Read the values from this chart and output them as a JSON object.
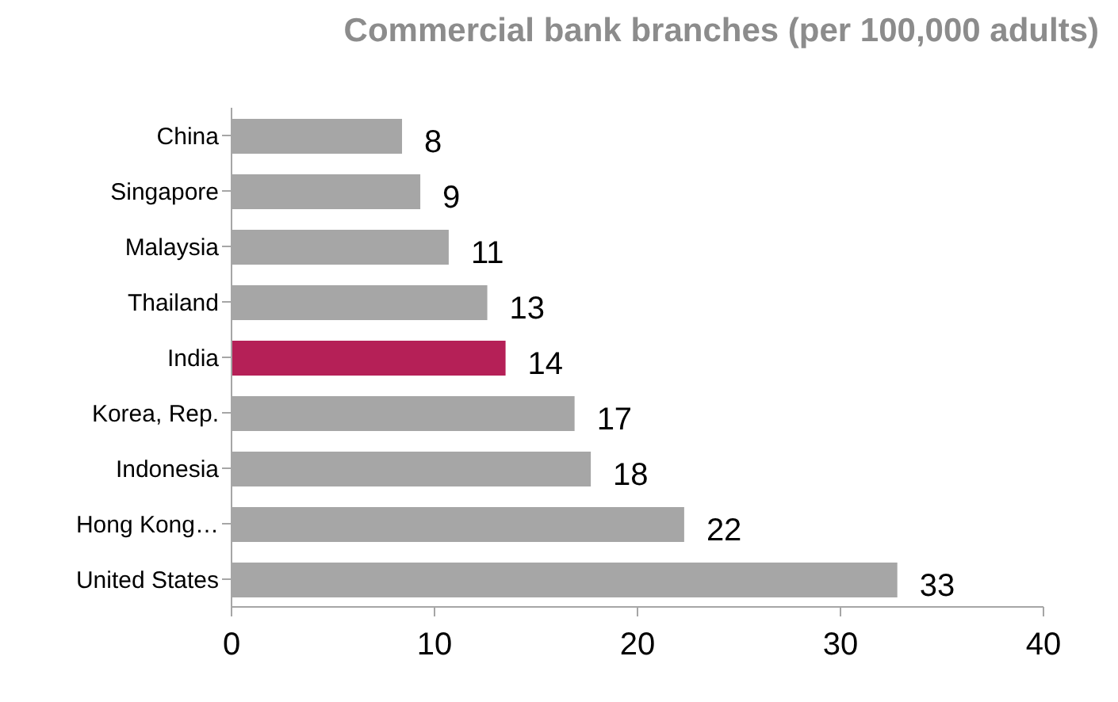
{
  "chart_data": {
    "type": "bar",
    "orientation": "horizontal",
    "title": "Commercial bank branches (per 100,000 adults)",
    "categories": [
      "China",
      "Singapore",
      "Malaysia",
      "Thailand",
      "India",
      "Korea, Rep.",
      "Indonesia",
      "Hong Kong…",
      "United States"
    ],
    "values": [
      8.4,
      9.3,
      10.7,
      12.6,
      13.5,
      16.9,
      17.7,
      22.3,
      32.8
    ],
    "value_labels": [
      "8",
      "9",
      "11",
      "13",
      "14",
      "17",
      "18",
      "22",
      "33"
    ],
    "colors": [
      "#a6a6a6",
      "#a6a6a6",
      "#a6a6a6",
      "#a6a6a6",
      "#b52057",
      "#a6a6a6",
      "#a6a6a6",
      "#a6a6a6",
      "#a6a6a6"
    ],
    "xlim": [
      0,
      40
    ],
    "xticks": [
      0,
      10,
      20,
      30,
      40
    ],
    "grid": false,
    "legend": false
  }
}
